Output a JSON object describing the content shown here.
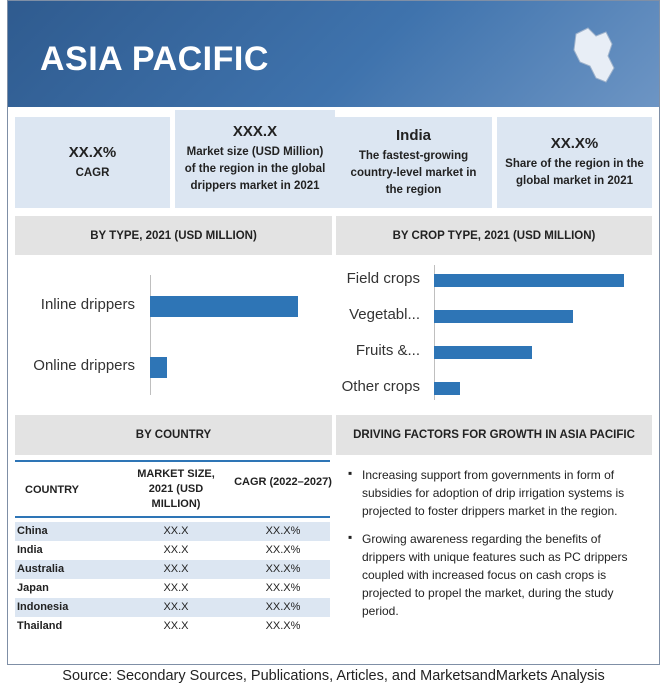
{
  "header": {
    "title": "ASIA PACIFIC"
  },
  "stats": [
    {
      "value": "XX.X%",
      "label": "CAGR"
    },
    {
      "value": "XXX.X",
      "label": "Market size (USD Million) of the region in the global drippers market in 2021"
    },
    {
      "value": "India",
      "label": "The fastest-growing country-level market in the region"
    },
    {
      "value": "XX.X%",
      "label": "Share of the region in the global market in 2021"
    }
  ],
  "chart_data": [
    {
      "type": "bar",
      "orientation": "horizontal",
      "title": "BY TYPE, 2021 (USD MILLION)",
      "categories": [
        "Inline drippers",
        "Online drippers"
      ],
      "values": [
        148,
        17
      ],
      "color": "#2e75b6"
    },
    {
      "type": "bar",
      "orientation": "horizontal",
      "title": "BY CROP TYPE, 2021 (USD MILLION)",
      "categories": [
        "Field crops",
        "Vegetabl...",
        "Fruits &...",
        "Other crops"
      ],
      "values": [
        190,
        139,
        98,
        26
      ],
      "color": "#2e75b6"
    }
  ],
  "table": {
    "title": "BY COUNTRY",
    "columns": [
      "COUNTRY",
      "MARKET SIZE, 2021 (USD MILLION)",
      "CAGR (2022–2027)"
    ],
    "rows": [
      [
        "China",
        "XX.X",
        "XX.X%"
      ],
      [
        "India",
        "XX.X",
        "XX.X%"
      ],
      [
        "Australia",
        "XX.X",
        "XX.X%"
      ],
      [
        "Japan",
        "XX.X",
        "XX.X%"
      ],
      [
        "Indonesia",
        "XX.X",
        "XX.X%"
      ],
      [
        "Thailand",
        "XX.X",
        "XX.X%"
      ]
    ]
  },
  "factors": {
    "title": "DRIVING FACTORS FOR GROWTH IN ASIA PACIFIC",
    "items": [
      "Increasing support from governments in form of subsidies for adoption of drip irrigation systems is projected to foster drippers market in the region.",
      "Growing awareness regarding the benefits of drippers with unique features such as PC drippers coupled with increased focus on cash crops is projected to propel the market, during the study period."
    ]
  },
  "source": "Source: Secondary Sources, Publications, Articles, and MarketsandMarkets Analysis"
}
